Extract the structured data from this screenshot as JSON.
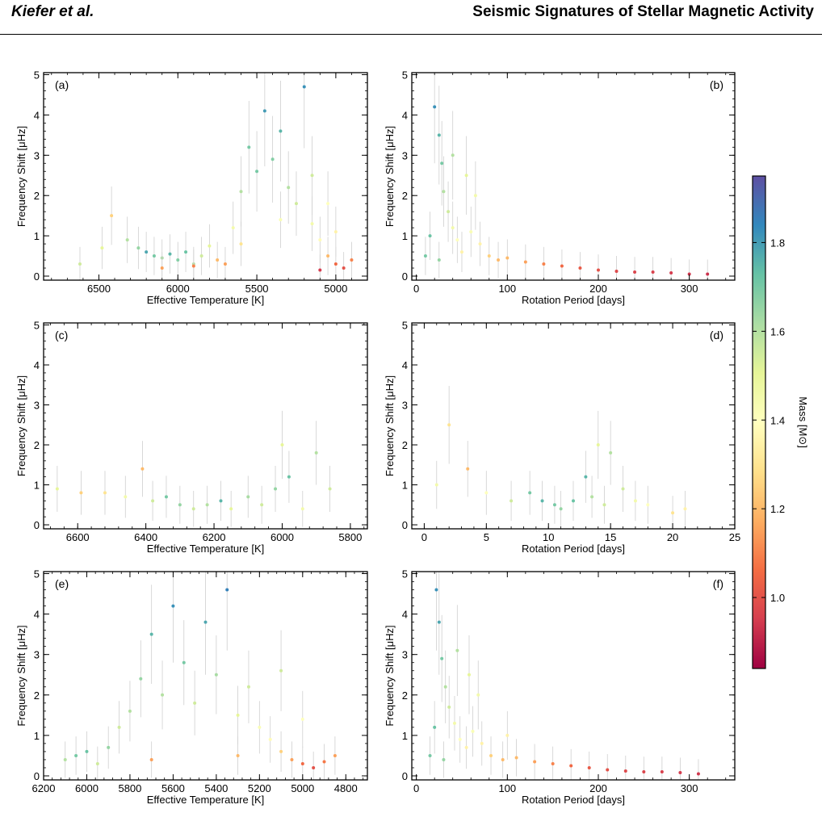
{
  "header": {
    "left": "Kiefer et al.",
    "right": "Seismic Signatures of Stellar Magnetic Activity"
  },
  "colorbar": {
    "label": "Mass [M⊙]",
    "ticks": [
      1.0,
      1.2,
      1.4,
      1.6,
      1.8
    ],
    "range": [
      0.84,
      1.95
    ],
    "colors": [
      "#9e0142",
      "#d53e4f",
      "#f46d43",
      "#fdae61",
      "#fee08b",
      "#ffffbf",
      "#e6f598",
      "#abdda4",
      "#66c2a5",
      "#3288bd",
      "#5e4fa2"
    ]
  },
  "chart_data": [
    {
      "id": "a",
      "panel_label": "(a)",
      "type": "scatter",
      "xlabel": "Effective Temperature [K]",
      "ylabel": "Frequency Shift [μHz]",
      "xlim": [
        6850,
        4800
      ],
      "ylim": [
        -0.1,
        5.05
      ],
      "xticks": [
        6500,
        6000,
        5500,
        5000
      ],
      "yticks": [
        0,
        1,
        2,
        3,
        4,
        5
      ],
      "points": [
        [
          6620,
          0.3,
          1.55
        ],
        [
          6480,
          0.7,
          1.5
        ],
        [
          6420,
          1.5,
          1.25
        ],
        [
          6320,
          0.9,
          1.6
        ],
        [
          6250,
          0.7,
          1.65
        ],
        [
          6200,
          0.6,
          1.78
        ],
        [
          6150,
          0.5,
          1.7
        ],
        [
          6100,
          0.45,
          1.62
        ],
        [
          6050,
          0.55,
          1.75
        ],
        [
          6000,
          0.4,
          1.68
        ],
        [
          5950,
          0.6,
          1.72
        ],
        [
          5900,
          0.3,
          1.6
        ],
        [
          5850,
          0.5,
          1.55
        ],
        [
          5800,
          0.75,
          1.5
        ],
        [
          5750,
          0.4,
          1.2
        ],
        [
          5700,
          0.3,
          1.15
        ],
        [
          5650,
          1.2,
          1.45
        ],
        [
          5600,
          2.1,
          1.6
        ],
        [
          5550,
          3.2,
          1.7
        ],
        [
          5500,
          2.6,
          1.7
        ],
        [
          5450,
          4.1,
          1.8
        ],
        [
          5400,
          2.9,
          1.68
        ],
        [
          5350,
          3.6,
          1.75
        ],
        [
          5300,
          2.2,
          1.6
        ],
        [
          5250,
          1.8,
          1.55
        ],
        [
          5200,
          4.7,
          1.82
        ],
        [
          5150,
          1.3,
          1.45
        ],
        [
          5100,
          0.9,
          1.38
        ],
        [
          5050,
          0.5,
          1.2
        ],
        [
          5000,
          0.3,
          1.05
        ],
        [
          4950,
          0.2,
          1.0
        ],
        [
          4900,
          0.4,
          1.1
        ],
        [
          5050,
          1.8,
          1.4
        ],
        [
          5150,
          2.5,
          1.55
        ],
        [
          5350,
          1.4,
          1.42
        ],
        [
          5600,
          0.8,
          1.3
        ],
        [
          5900,
          0.25,
          1.1
        ],
        [
          6100,
          0.2,
          1.15
        ],
        [
          5000,
          1.1,
          1.35
        ],
        [
          5100,
          0.15,
          0.95
        ]
      ],
      "series_name": ""
    },
    {
      "id": "b",
      "panel_label": "(b)",
      "type": "scatter",
      "xlabel": "Rotation Period [days]",
      "ylabel": "Frequency Shift [μHz]",
      "xlim": [
        -5,
        350
      ],
      "ylim": [
        -0.1,
        5.05
      ],
      "xticks": [
        0,
        100,
        200,
        300
      ],
      "yticks": [
        0,
        1,
        2,
        3,
        4,
        5
      ],
      "points": [
        [
          10,
          0.5,
          1.7
        ],
        [
          15,
          1.0,
          1.72
        ],
        [
          20,
          4.2,
          1.82
        ],
        [
          25,
          3.5,
          1.75
        ],
        [
          28,
          2.8,
          1.7
        ],
        [
          30,
          2.1,
          1.6
        ],
        [
          35,
          1.6,
          1.55
        ],
        [
          40,
          1.2,
          1.45
        ],
        [
          45,
          0.9,
          1.4
        ],
        [
          50,
          0.6,
          1.35
        ],
        [
          60,
          1.1,
          1.42
        ],
        [
          70,
          0.8,
          1.35
        ],
        [
          80,
          0.5,
          1.25
        ],
        [
          90,
          0.4,
          1.2
        ],
        [
          100,
          0.45,
          1.2
        ],
        [
          120,
          0.35,
          1.15
        ],
        [
          140,
          0.3,
          1.1
        ],
        [
          160,
          0.25,
          1.05
        ],
        [
          180,
          0.2,
          1.02
        ],
        [
          200,
          0.15,
          1.0
        ],
        [
          220,
          0.12,
          0.98
        ],
        [
          240,
          0.1,
          0.97
        ],
        [
          260,
          0.1,
          0.96
        ],
        [
          280,
          0.08,
          0.95
        ],
        [
          300,
          0.05,
          0.94
        ],
        [
          320,
          0.05,
          0.93
        ],
        [
          55,
          2.5,
          1.5
        ],
        [
          40,
          3.0,
          1.6
        ],
        [
          65,
          2.0,
          1.45
        ],
        [
          25,
          0.4,
          1.65
        ]
      ],
      "series_name": ""
    },
    {
      "id": "c",
      "panel_label": "(c)",
      "type": "scatter",
      "xlabel": "Effective Temperature [K]",
      "ylabel": "Frequency Shift [μHz]",
      "xlim": [
        6700,
        5750
      ],
      "ylim": [
        -0.1,
        5.05
      ],
      "xticks": [
        6600,
        6400,
        6200,
        6000,
        5800
      ],
      "yticks": [
        0,
        1,
        2,
        3,
        4,
        5
      ],
      "points": [
        [
          6660,
          0.9,
          1.5
        ],
        [
          6590,
          0.8,
          1.25
        ],
        [
          6520,
          0.8,
          1.3
        ],
        [
          6460,
          0.7,
          1.45
        ],
        [
          6410,
          1.4,
          1.2
        ],
        [
          6380,
          0.6,
          1.55
        ],
        [
          6340,
          0.7,
          1.7
        ],
        [
          6300,
          0.5,
          1.65
        ],
        [
          6260,
          0.4,
          1.55
        ],
        [
          6220,
          0.5,
          1.6
        ],
        [
          6180,
          0.6,
          1.75
        ],
        [
          6150,
          0.4,
          1.5
        ],
        [
          6100,
          0.7,
          1.62
        ],
        [
          6060,
          0.5,
          1.55
        ],
        [
          6020,
          0.9,
          1.65
        ],
        [
          6000,
          2.0,
          1.5
        ],
        [
          5980,
          1.2,
          1.72
        ],
        [
          5940,
          0.4,
          1.45
        ],
        [
          5900,
          1.8,
          1.6
        ],
        [
          5860,
          0.9,
          1.55
        ]
      ],
      "series_name": ""
    },
    {
      "id": "d",
      "panel_label": "(d)",
      "type": "scatter",
      "xlabel": "Rotation Period [days]",
      "ylabel": "Frequency Shift [μHz]",
      "xlim": [
        -1,
        25
      ],
      "ylim": [
        -0.1,
        5.05
      ],
      "xticks": [
        0,
        5,
        10,
        15,
        20,
        25
      ],
      "yticks": [
        0,
        1,
        2,
        3,
        4,
        5
      ],
      "points": [
        [
          1,
          1.0,
          1.45
        ],
        [
          2,
          2.5,
          1.3
        ],
        [
          3.5,
          1.4,
          1.2
        ],
        [
          5,
          0.8,
          1.4
        ],
        [
          7,
          0.6,
          1.55
        ],
        [
          8.5,
          0.8,
          1.7
        ],
        [
          9.5,
          0.6,
          1.75
        ],
        [
          10.5,
          0.5,
          1.7
        ],
        [
          11,
          0.4,
          1.65
        ],
        [
          12,
          0.6,
          1.72
        ],
        [
          13,
          1.2,
          1.75
        ],
        [
          13.5,
          0.7,
          1.6
        ],
        [
          14,
          2.0,
          1.5
        ],
        [
          14.5,
          0.5,
          1.55
        ],
        [
          15,
          1.8,
          1.6
        ],
        [
          16,
          0.9,
          1.55
        ],
        [
          17,
          0.6,
          1.45
        ],
        [
          18,
          0.5,
          1.4
        ],
        [
          20,
          0.3,
          1.3
        ],
        [
          21,
          0.4,
          1.35
        ]
      ],
      "series_name": ""
    },
    {
      "id": "e",
      "panel_label": "(e)",
      "type": "scatter",
      "xlabel": "Effective Temperature [K]",
      "ylabel": "Frequency Shift [μHz]",
      "xlim": [
        6200,
        4700
      ],
      "ylim": [
        -0.1,
        5.05
      ],
      "xticks": [
        6200,
        6000,
        5800,
        5600,
        5400,
        5200,
        5000,
        4800
      ],
      "yticks": [
        0,
        1,
        2,
        3,
        4,
        5
      ],
      "points": [
        [
          6100,
          0.4,
          1.6
        ],
        [
          6050,
          0.5,
          1.7
        ],
        [
          6000,
          0.6,
          1.72
        ],
        [
          5950,
          0.3,
          1.55
        ],
        [
          5900,
          0.7,
          1.65
        ],
        [
          5850,
          1.2,
          1.55
        ],
        [
          5800,
          1.6,
          1.6
        ],
        [
          5750,
          2.4,
          1.65
        ],
        [
          5700,
          3.5,
          1.75
        ],
        [
          5650,
          2.0,
          1.6
        ],
        [
          5600,
          4.2,
          1.82
        ],
        [
          5550,
          2.8,
          1.7
        ],
        [
          5500,
          1.8,
          1.55
        ],
        [
          5450,
          3.8,
          1.78
        ],
        [
          5400,
          2.5,
          1.62
        ],
        [
          5350,
          4.6,
          1.85
        ],
        [
          5300,
          1.5,
          1.5
        ],
        [
          5250,
          2.2,
          1.55
        ],
        [
          5200,
          1.2,
          1.42
        ],
        [
          5150,
          0.9,
          1.38
        ],
        [
          5100,
          0.6,
          1.25
        ],
        [
          5050,
          0.4,
          1.15
        ],
        [
          5000,
          0.3,
          1.05
        ],
        [
          4950,
          0.2,
          1.0
        ],
        [
          4900,
          0.35,
          1.08
        ],
        [
          4850,
          0.5,
          1.15
        ],
        [
          5100,
          2.6,
          1.55
        ],
        [
          5000,
          1.4,
          1.4
        ],
        [
          5300,
          0.5,
          1.2
        ],
        [
          5700,
          0.4,
          1.15
        ]
      ],
      "series_name": ""
    },
    {
      "id": "f",
      "panel_label": "(f)",
      "type": "scatter",
      "xlabel": "Rotation Period [days]",
      "ylabel": "Frequency Shift [μHz]",
      "xlim": [
        -5,
        350
      ],
      "ylim": [
        -0.1,
        5.05
      ],
      "xticks": [
        0,
        100,
        200,
        300
      ],
      "yticks": [
        0,
        1,
        2,
        3,
        4,
        5
      ],
      "points": [
        [
          15,
          0.5,
          1.7
        ],
        [
          20,
          1.2,
          1.72
        ],
        [
          22,
          4.6,
          1.82
        ],
        [
          25,
          3.8,
          1.78
        ],
        [
          28,
          2.9,
          1.7
        ],
        [
          32,
          2.2,
          1.6
        ],
        [
          36,
          1.7,
          1.55
        ],
        [
          42,
          1.3,
          1.45
        ],
        [
          48,
          0.9,
          1.4
        ],
        [
          55,
          0.7,
          1.35
        ],
        [
          62,
          1.1,
          1.42
        ],
        [
          72,
          0.8,
          1.35
        ],
        [
          82,
          0.5,
          1.25
        ],
        [
          95,
          0.4,
          1.2
        ],
        [
          110,
          0.45,
          1.2
        ],
        [
          130,
          0.35,
          1.15
        ],
        [
          150,
          0.3,
          1.1
        ],
        [
          170,
          0.25,
          1.05
        ],
        [
          190,
          0.2,
          1.02
        ],
        [
          210,
          0.15,
          1.0
        ],
        [
          230,
          0.12,
          0.98
        ],
        [
          250,
          0.1,
          0.97
        ],
        [
          270,
          0.1,
          0.96
        ],
        [
          290,
          0.08,
          0.95
        ],
        [
          310,
          0.05,
          0.94
        ],
        [
          58,
          2.5,
          1.5
        ],
        [
          45,
          3.1,
          1.6
        ],
        [
          68,
          2.0,
          1.45
        ],
        [
          30,
          0.4,
          1.65
        ],
        [
          100,
          1.0,
          1.35
        ]
      ],
      "series_name": ""
    }
  ]
}
